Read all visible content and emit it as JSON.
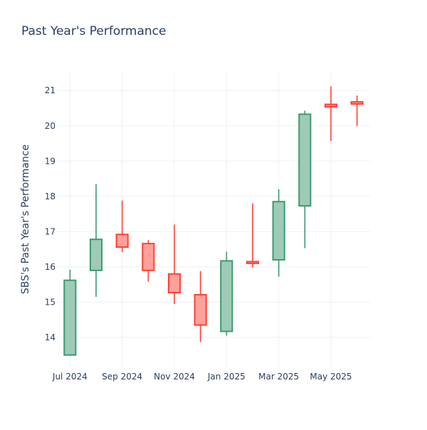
{
  "chart_data": {
    "type": "candlestick",
    "title": "Past Year's Performance",
    "xlabel": "",
    "ylabel": "SBS's Past Year's Performance",
    "ylim": [
      13.15,
      21.55
    ],
    "y_ticks": [
      14,
      15,
      16,
      17,
      18,
      19,
      20,
      21
    ],
    "x_ticks": [
      {
        "label": "Jul 2024",
        "index": 0
      },
      {
        "label": "Sep 2024",
        "index": 2
      },
      {
        "label": "Nov 2024",
        "index": 4
      },
      {
        "label": "Jan 2025",
        "index": 6
      },
      {
        "label": "Mar 2025",
        "index": 8
      },
      {
        "label": "May 2025",
        "index": 10
      }
    ],
    "grid": true,
    "increasing_color": "#3d9970",
    "increasing_fill": "#9ecbb6",
    "decreasing_color": "#ff4136",
    "decreasing_fill": "#ffa09b",
    "candles": [
      {
        "period": "Jul 2024",
        "open": 13.5,
        "high": 15.92,
        "low": 13.5,
        "close": 15.62
      },
      {
        "period": "Aug 2024",
        "open": 15.9,
        "high": 18.35,
        "low": 15.15,
        "close": 16.78
      },
      {
        "period": "Sep 2024",
        "open": 16.92,
        "high": 17.88,
        "low": 16.42,
        "close": 16.56
      },
      {
        "period": "Oct 2024",
        "open": 16.66,
        "high": 16.76,
        "low": 15.58,
        "close": 15.9
      },
      {
        "period": "Nov 2024",
        "open": 15.8,
        "high": 17.2,
        "low": 14.95,
        "close": 15.27
      },
      {
        "period": "Dec 2024",
        "open": 15.21,
        "high": 15.88,
        "low": 13.87,
        "close": 14.35
      },
      {
        "period": "Jan 2025",
        "open": 14.17,
        "high": 16.43,
        "low": 14.05,
        "close": 16.17
      },
      {
        "period": "Feb 2025",
        "open": 16.15,
        "high": 17.8,
        "low": 15.98,
        "close": 16.1
      },
      {
        "period": "Mar 2025",
        "open": 16.2,
        "high": 18.2,
        "low": 15.72,
        "close": 17.85
      },
      {
        "period": "Apr 2025",
        "open": 17.73,
        "high": 20.43,
        "low": 16.53,
        "close": 20.33
      },
      {
        "period": "May 2025",
        "open": 20.61,
        "high": 21.12,
        "low": 19.57,
        "close": 20.54
      },
      {
        "period": "Jun 2025",
        "open": 20.68,
        "high": 20.86,
        "low": 20.0,
        "close": 20.62
      }
    ]
  }
}
